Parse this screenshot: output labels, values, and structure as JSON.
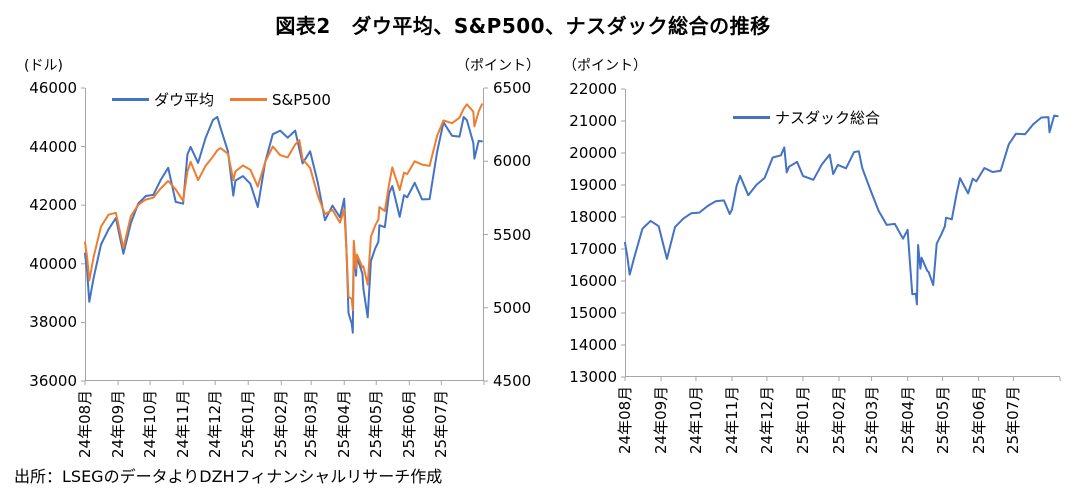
{
  "title": "図表2　ダウ平均、S&P500、ナスダック総合の推移",
  "source": "出所：LSEGのデータよりDZHフィナンシャルリサーチ作成",
  "axis_color": "#a6a6a6",
  "chart_data": [
    {
      "type": "line",
      "left_axis_unit": "(ドル)",
      "right_axis_unit": "（ポイント）",
      "left_range": [
        36000,
        46000
      ],
      "right_range": [
        4500,
        6500
      ],
      "left_ticks": [
        46000,
        44000,
        42000,
        40000,
        38000,
        36000
      ],
      "right_ticks": [
        6500,
        6000,
        5500,
        5000,
        4500
      ],
      "x_days": 374,
      "grid": false,
      "legend_position": "top-inside",
      "x_ticks": [
        {
          "label": "24年08月",
          "d": 0
        },
        {
          "label": "24年09月",
          "d": 31
        },
        {
          "label": "24年10月",
          "d": 61
        },
        {
          "label": "24年11月",
          "d": 92
        },
        {
          "label": "24年12月",
          "d": 122
        },
        {
          "label": "25年01月",
          "d": 153
        },
        {
          "label": "25年02月",
          "d": 184
        },
        {
          "label": "25年03月",
          "d": 212
        },
        {
          "label": "25年04月",
          "d": 243
        },
        {
          "label": "25年05月",
          "d": 273
        },
        {
          "label": "25年06月",
          "d": 304
        },
        {
          "label": "25年07月",
          "d": 334
        }
      ],
      "series": [
        {
          "name": "ダウ平均",
          "axis": "left",
          "color": "#4472C4",
          "points": [
            [
              0,
              40348
            ],
            [
              2,
              39737
            ],
            [
              4,
              38703
            ],
            [
              8,
              39498
            ],
            [
              15,
              40660
            ],
            [
              22,
              41175
            ],
            [
              29,
              41563
            ],
            [
              36,
              40345
            ],
            [
              43,
              41394
            ],
            [
              50,
              42063
            ],
            [
              57,
              42313
            ],
            [
              64,
              42353
            ],
            [
              71,
              42864
            ],
            [
              78,
              43276
            ],
            [
              85,
              42114
            ],
            [
              92,
              42052
            ],
            [
              96,
              43730
            ],
            [
              99,
              43989
            ],
            [
              106,
              43445
            ],
            [
              113,
              44297
            ],
            [
              120,
              44911
            ],
            [
              124,
              45014
            ],
            [
              127,
              44643
            ],
            [
              134,
              43828
            ],
            [
              139,
              42327
            ],
            [
              141,
              42840
            ],
            [
              148,
              42992
            ],
            [
              155,
              42732
            ],
            [
              162,
              41938
            ],
            [
              169,
              43488
            ],
            [
              176,
              44424
            ],
            [
              183,
              44545
            ],
            [
              190,
              44303
            ],
            [
              197,
              44546
            ],
            [
              204,
              43428
            ],
            [
              211,
              43841
            ],
            [
              218,
              42802
            ],
            [
              225,
              41488
            ],
            [
              232,
              41985
            ],
            [
              239,
              41584
            ],
            [
              243,
              42225
            ],
            [
              245,
              40546
            ],
            [
              247,
              38315
            ],
            [
              250,
              37966
            ],
            [
              251,
              37646
            ],
            [
              252,
              40608
            ],
            [
              254,
              39594
            ],
            [
              255,
              40212
            ],
            [
              260,
              39669
            ],
            [
              261,
              39142
            ],
            [
              265,
              38170
            ],
            [
              268,
              40093
            ],
            [
              272,
              40527
            ],
            [
              275,
              40752
            ],
            [
              276,
              41317
            ],
            [
              281,
              41249
            ],
            [
              285,
              42410
            ],
            [
              288,
              42655
            ],
            [
              295,
              41603
            ],
            [
              299,
              42343
            ],
            [
              302,
              42270
            ],
            [
              309,
              42763
            ],
            [
              316,
              42198
            ],
            [
              323,
              42207
            ],
            [
              330,
              43819
            ],
            [
              336,
              44829
            ],
            [
              344,
              44372
            ],
            [
              351,
              44342
            ],
            [
              355,
              45010
            ],
            [
              358,
              44902
            ],
            [
              364,
              44131
            ],
            [
              365,
              43589
            ],
            [
              369,
              44193
            ],
            [
              372,
              44176
            ]
          ]
        },
        {
          "name": "S&P500",
          "axis": "right",
          "color": "#ED7D31",
          "points": [
            [
              0,
              5446
            ],
            [
              2,
              5346
            ],
            [
              4,
              5186
            ],
            [
              8,
              5344
            ],
            [
              15,
              5554
            ],
            [
              22,
              5635
            ],
            [
              29,
              5648
            ],
            [
              36,
              5408
            ],
            [
              43,
              5626
            ],
            [
              50,
              5703
            ],
            [
              57,
              5738
            ],
            [
              64,
              5751
            ],
            [
              71,
              5815
            ],
            [
              78,
              5865
            ],
            [
              85,
              5808
            ],
            [
              92,
              5729
            ],
            [
              96,
              5929
            ],
            [
              99,
              5996
            ],
            [
              106,
              5871
            ],
            [
              113,
              5969
            ],
            [
              120,
              6032
            ],
            [
              124,
              6075
            ],
            [
              127,
              6090
            ],
            [
              134,
              6051
            ],
            [
              139,
              5872
            ],
            [
              141,
              5931
            ],
            [
              148,
              5971
            ],
            [
              155,
              5942
            ],
            [
              162,
              5827
            ],
            [
              169,
              5997
            ],
            [
              176,
              6101
            ],
            [
              183,
              6041
            ],
            [
              190,
              6026
            ],
            [
              197,
              6115
            ],
            [
              201,
              6144
            ],
            [
              204,
              6013
            ],
            [
              211,
              5955
            ],
            [
              218,
              5770
            ],
            [
              225,
              5639
            ],
            [
              232,
              5668
            ],
            [
              239,
              5581
            ],
            [
              243,
              5671
            ],
            [
              245,
              5397
            ],
            [
              247,
              5074
            ],
            [
              250,
              5062
            ],
            [
              251,
              4983
            ],
            [
              252,
              5457
            ],
            [
              254,
              5268
            ],
            [
              255,
              5363
            ],
            [
              260,
              5276
            ],
            [
              261,
              5283
            ],
            [
              265,
              5158
            ],
            [
              268,
              5485
            ],
            [
              272,
              5561
            ],
            [
              275,
              5604
            ],
            [
              276,
              5687
            ],
            [
              281,
              5660
            ],
            [
              285,
              5844
            ],
            [
              288,
              5958
            ],
            [
              295,
              5803
            ],
            [
              299,
              5922
            ],
            [
              302,
              5912
            ],
            [
              309,
              6000
            ],
            [
              316,
              5977
            ],
            [
              323,
              5968
            ],
            [
              330,
              6173
            ],
            [
              336,
              6279
            ],
            [
              344,
              6260
            ],
            [
              351,
              6297
            ],
            [
              355,
              6359
            ],
            [
              358,
              6389
            ],
            [
              364,
              6339
            ],
            [
              365,
              6238
            ],
            [
              369,
              6340
            ],
            [
              372,
              6389
            ]
          ]
        }
      ]
    },
    {
      "type": "line",
      "left_axis_unit": "（ポイント）",
      "left_range": [
        13000,
        22000
      ],
      "left_ticks": [
        22000,
        21000,
        20000,
        19000,
        18000,
        17000,
        16000,
        15000,
        14000,
        13000
      ],
      "x_days": 374,
      "grid": false,
      "legend_position": "top-inside",
      "x_ticks": [
        {
          "label": "24年08月",
          "d": 0
        },
        {
          "label": "24年09月",
          "d": 31
        },
        {
          "label": "24年10月",
          "d": 61
        },
        {
          "label": "24年11月",
          "d": 92
        },
        {
          "label": "24年12月",
          "d": 122
        },
        {
          "label": "25年01月",
          "d": 153
        },
        {
          "label": "25年02月",
          "d": 184
        },
        {
          "label": "25年03月",
          "d": 212
        },
        {
          "label": "25年04月",
          "d": 243
        },
        {
          "label": "25年05月",
          "d": 273
        },
        {
          "label": "25年06月",
          "d": 304
        },
        {
          "label": "25年07月",
          "d": 334
        }
      ],
      "series": [
        {
          "name": "ナスダック総合",
          "axis": "left",
          "color": "#4472C4",
          "points": [
            [
              0,
              17194
            ],
            [
              2,
              16776
            ],
            [
              4,
              16200
            ],
            [
              8,
              16745
            ],
            [
              15,
              17631
            ],
            [
              22,
              17877
            ],
            [
              29,
              17713
            ],
            [
              36,
              16690
            ],
            [
              43,
              17684
            ],
            [
              50,
              17948
            ],
            [
              57,
              18119
            ],
            [
              64,
              18137
            ],
            [
              71,
              18343
            ],
            [
              78,
              18490
            ],
            [
              85,
              18519
            ],
            [
              90,
              18095
            ],
            [
              92,
              18239
            ],
            [
              96,
              18983
            ],
            [
              99,
              19286
            ],
            [
              106,
              18680
            ],
            [
              113,
              19003
            ],
            [
              120,
              19218
            ],
            [
              127,
              19860
            ],
            [
              134,
              19927
            ],
            [
              137,
              20174
            ],
            [
              139,
              19393
            ],
            [
              141,
              19572
            ],
            [
              148,
              19722
            ],
            [
              153,
              19281
            ],
            [
              162,
              19162
            ],
            [
              169,
              19630
            ],
            [
              176,
              19954
            ],
            [
              179,
              19341
            ],
            [
              183,
              19627
            ],
            [
              190,
              19523
            ],
            [
              197,
              20027
            ],
            [
              201,
              20056
            ],
            [
              204,
              19524
            ],
            [
              211,
              18847
            ],
            [
              218,
              18196
            ],
            [
              225,
              17754
            ],
            [
              232,
              17784
            ],
            [
              239,
              17323
            ],
            [
              243,
              17601
            ],
            [
              245,
              16551
            ],
            [
              247,
              15588
            ],
            [
              250,
              15603
            ],
            [
              251,
              15268
            ],
            [
              252,
              17125
            ],
            [
              254,
              16387
            ],
            [
              255,
              16724
            ],
            [
              260,
              16308
            ],
            [
              261,
              16286
            ],
            [
              265,
              15871
            ],
            [
              268,
              17166
            ],
            [
              272,
              17461
            ],
            [
              275,
              17711
            ],
            [
              276,
              17978
            ],
            [
              281,
              17929
            ],
            [
              285,
              18708
            ],
            [
              288,
              19211
            ],
            [
              295,
              18737
            ],
            [
              299,
              19199
            ],
            [
              302,
              19114
            ],
            [
              309,
              19530
            ],
            [
              316,
              19407
            ],
            [
              323,
              19447
            ],
            [
              330,
              20273
            ],
            [
              336,
              20601
            ],
            [
              344,
              20586
            ],
            [
              351,
              20896
            ],
            [
              355,
              21020
            ],
            [
              358,
              21108
            ],
            [
              364,
              21122
            ],
            [
              365,
              20650
            ],
            [
              369,
              21169
            ],
            [
              372,
              21150
            ]
          ]
        }
      ]
    }
  ]
}
